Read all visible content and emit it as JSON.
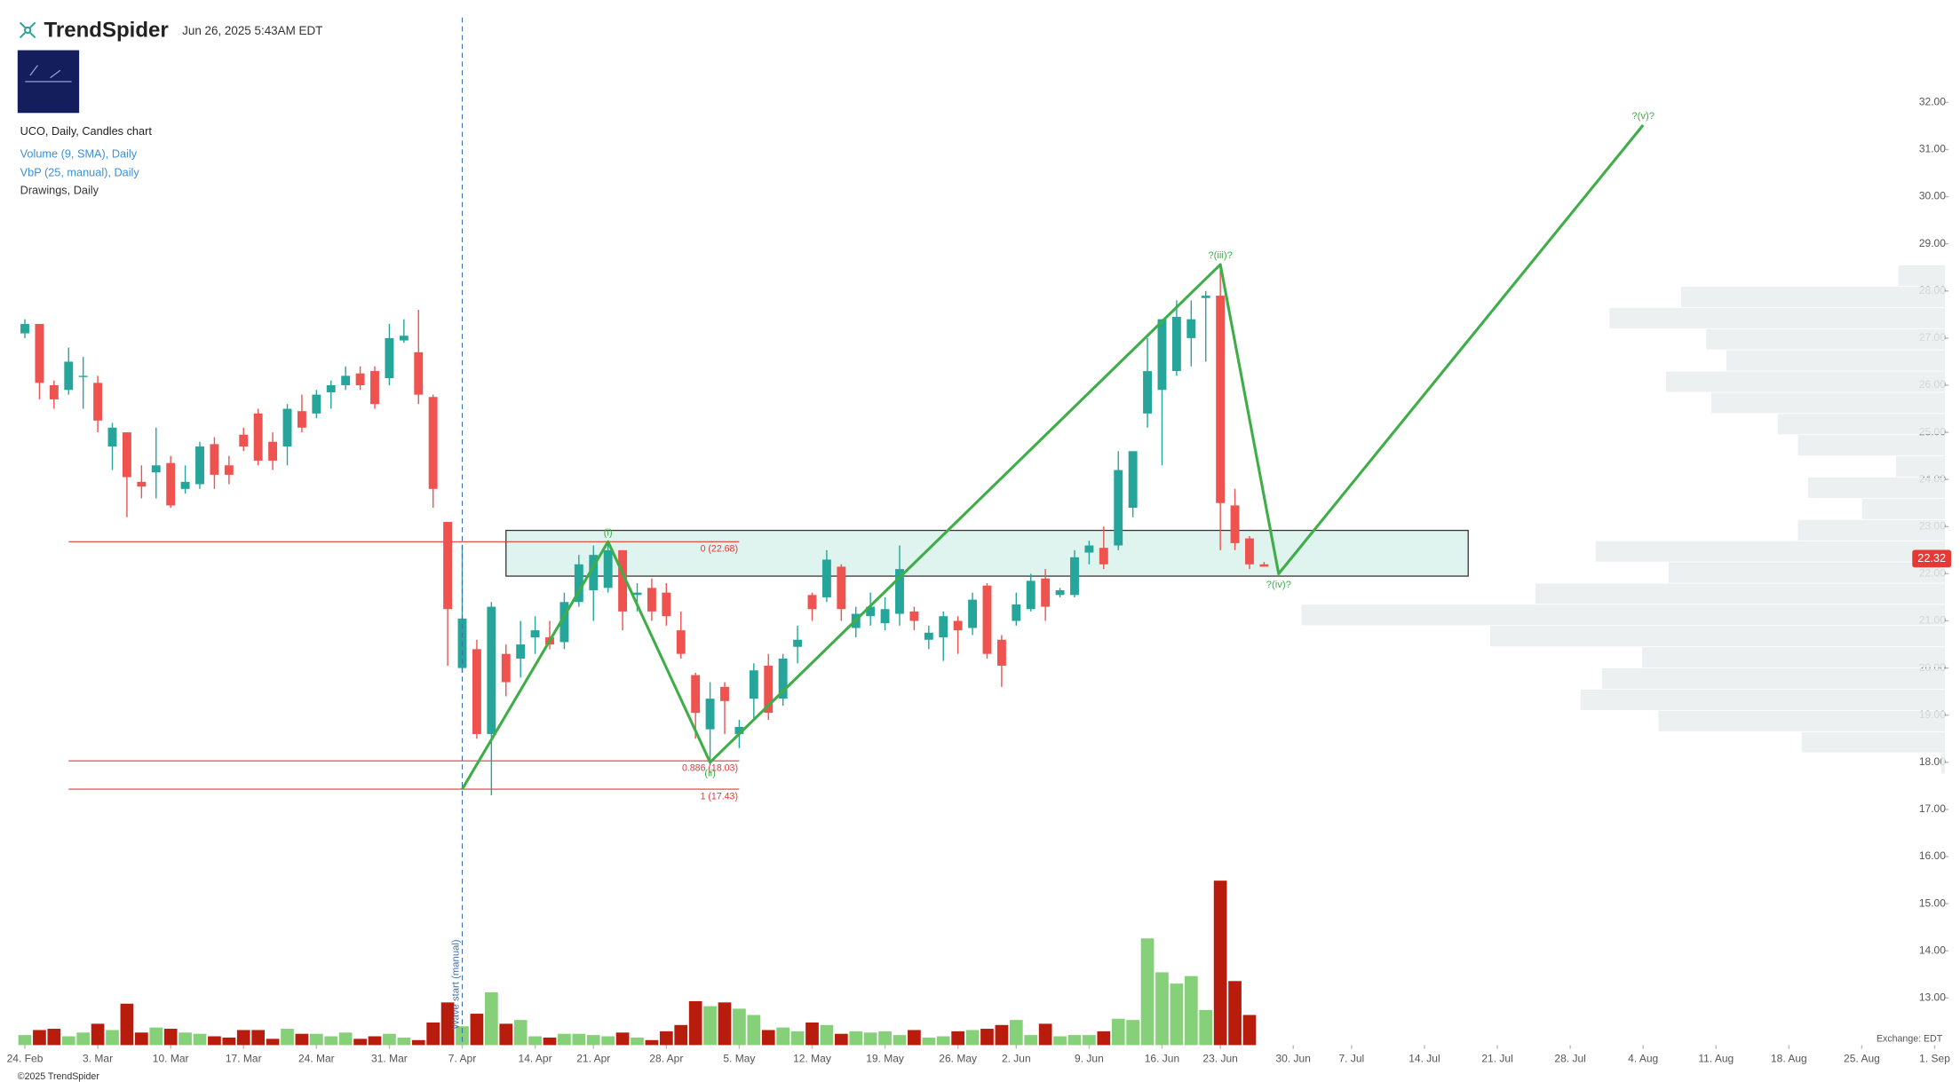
{
  "header": {
    "brand": "TrendSpider",
    "timestamp": "Jun 26, 2025 5:43AM EDT",
    "legend": [
      "UCO, Daily, Candles chart",
      "Volume (9, SMA), Daily",
      "VbP (25, manual), Daily",
      "Drawings, Daily"
    ],
    "copyright": "©2025 TrendSpider",
    "exchange": "Exchange: EDT"
  },
  "chart_data": {
    "type": "candlestick",
    "up_color": "#26a69a",
    "down_color": "#ef5350",
    "volume_up_color": "#86d07a",
    "volume_down_color": "#b71c0c",
    "xlim": [
      -0.5,
      131.7
    ],
    "ylim": [
      12,
      33.8
    ],
    "xticks": [
      {
        "value": 0,
        "label": "24. Feb"
      },
      {
        "value": 5,
        "label": "3. Mar"
      },
      {
        "value": 10,
        "label": "10. Mar"
      },
      {
        "value": 15,
        "label": "17. Mar"
      },
      {
        "value": 20,
        "label": "24. Mar"
      },
      {
        "value": 25,
        "label": "31. Mar"
      },
      {
        "value": 30,
        "label": "7. Apr"
      },
      {
        "value": 35,
        "label": "14. Apr"
      },
      {
        "value": 39,
        "label": "21. Apr"
      },
      {
        "value": 44,
        "label": "28. Apr"
      },
      {
        "value": 49,
        "label": "5. May"
      },
      {
        "value": 54,
        "label": "12. May"
      },
      {
        "value": 59,
        "label": "19. May"
      },
      {
        "value": 64,
        "label": "26. May"
      },
      {
        "value": 68,
        "label": "2. Jun"
      },
      {
        "value": 73,
        "label": "9. Jun"
      },
      {
        "value": 78,
        "label": "16. Jun"
      },
      {
        "value": 82,
        "label": "23. Jun"
      },
      {
        "value": 87,
        "label": "30. Jun"
      },
      {
        "value": 91,
        "label": "7. Jul"
      },
      {
        "value": 96,
        "label": "14. Jul"
      },
      {
        "value": 101,
        "label": "21. Jul"
      },
      {
        "value": 106,
        "label": "28. Jul"
      },
      {
        "value": 111,
        "label": "4. Aug"
      },
      {
        "value": 116,
        "label": "11. Aug"
      },
      {
        "value": 121,
        "label": "18. Aug"
      },
      {
        "value": 126,
        "label": "25. Aug"
      },
      {
        "value": 131,
        "label": "1. Sep"
      }
    ],
    "yticks": [
      {
        "value": 13,
        "label": "13.00"
      },
      {
        "value": 14,
        "label": "14.00"
      },
      {
        "value": 15,
        "label": "15.00"
      },
      {
        "value": 16,
        "label": "16.00"
      },
      {
        "value": 17,
        "label": "17.00"
      },
      {
        "value": 18,
        "label": "18.00"
      },
      {
        "value": 19,
        "label": "19.00"
      },
      {
        "value": 20,
        "label": "20.00"
      },
      {
        "value": 21,
        "label": "21.00"
      },
      {
        "value": 22,
        "label": "22.00"
      },
      {
        "value": 23,
        "label": "23.00"
      },
      {
        "value": 24,
        "label": "24.00"
      },
      {
        "value": 25,
        "label": "25.00"
      },
      {
        "value": 26,
        "label": "26.00"
      },
      {
        "value": 27,
        "label": "27.00"
      },
      {
        "value": 28,
        "label": "28.00"
      },
      {
        "value": 29,
        "label": "29.00"
      },
      {
        "value": 30,
        "label": "30.00"
      },
      {
        "value": 31,
        "label": "31.00"
      },
      {
        "value": 32,
        "label": "32.00"
      }
    ],
    "open": [
      27.1,
      27.3,
      26.0,
      25.9,
      26.2,
      26.05,
      24.7,
      25.0,
      23.95,
      24.15,
      24.35,
      23.8,
      23.9,
      24.75,
      24.3,
      24.95,
      25.4,
      24.8,
      24.7,
      25.45,
      25.4,
      25.85,
      26.0,
      26.25,
      26.3,
      26.15,
      26.95,
      26.7,
      25.75,
      23.1,
      20.0,
      20.4,
      18.6,
      20.3,
      20.2,
      20.65,
      20.65,
      20.55,
      21.4,
      21.65,
      21.7,
      22.5,
      21.55,
      21.7,
      21.6,
      20.8,
      19.85,
      18.7,
      19.6,
      18.6,
      19.35,
      20.05,
      19.35,
      20.45,
      21.55,
      21.5,
      22.15,
      20.85,
      21.1,
      20.95,
      21.15,
      21.2,
      20.6,
      20.65,
      21.0,
      20.85,
      21.75,
      20.6,
      21.0,
      21.25,
      21.9,
      21.55,
      21.55,
      22.45,
      22.55,
      22.6,
      23.4,
      25.4,
      25.9,
      26.3,
      27.0,
      27.85,
      27.9,
      23.45,
      22.75,
      22.2
    ],
    "high": [
      27.4,
      27.3,
      26.1,
      26.8,
      26.6,
      26.2,
      25.2,
      25.0,
      24.3,
      25.1,
      24.5,
      24.3,
      24.8,
      24.9,
      24.5,
      25.1,
      25.5,
      25.0,
      25.6,
      25.8,
      25.9,
      26.1,
      26.4,
      26.4,
      26.4,
      27.3,
      27.4,
      27.6,
      25.8,
      23.1,
      22.6,
      20.6,
      21.4,
      20.5,
      21.0,
      21.1,
      21.0,
      21.6,
      22.4,
      22.6,
      22.7,
      22.5,
      21.8,
      21.9,
      21.8,
      21.2,
      19.9,
      19.7,
      19.7,
      18.9,
      20.1,
      20.3,
      20.3,
      20.9,
      21.6,
      22.5,
      22.2,
      21.3,
      21.6,
      21.5,
      22.6,
      21.3,
      20.9,
      21.2,
      21.1,
      21.6,
      21.8,
      20.7,
      21.6,
      22.0,
      22.1,
      21.7,
      22.5,
      22.7,
      23.0,
      24.6,
      24.6,
      27.0,
      27.4,
      27.8,
      27.8,
      28.0,
      28.55,
      23.8,
      22.8,
      22.25
    ],
    "low": [
      27.0,
      25.7,
      25.5,
      25.8,
      25.5,
      25.0,
      24.2,
      23.2,
      23.6,
      23.6,
      23.4,
      23.7,
      23.8,
      23.8,
      23.9,
      24.6,
      24.3,
      24.2,
      24.3,
      25.0,
      25.3,
      25.5,
      25.9,
      25.9,
      25.5,
      26.0,
      26.9,
      25.6,
      23.4,
      20.05,
      19.9,
      18.5,
      17.3,
      19.4,
      19.8,
      20.3,
      20.4,
      20.4,
      21.3,
      21.0,
      21.6,
      20.8,
      21.2,
      21.0,
      20.9,
      20.2,
      18.5,
      17.95,
      18.6,
      18.3,
      18.9,
      18.9,
      19.2,
      20.1,
      21.0,
      21.4,
      21.0,
      20.65,
      20.9,
      20.8,
      20.9,
      20.8,
      20.4,
      20.15,
      20.3,
      20.7,
      20.2,
      19.6,
      20.9,
      21.2,
      21.0,
      21.5,
      21.5,
      22.2,
      22.1,
      22.5,
      23.2,
      25.1,
      24.3,
      26.2,
      26.4,
      26.5,
      22.5,
      22.5,
      22.1,
      22.15
    ],
    "close": [
      27.3,
      26.05,
      25.7,
      26.5,
      26.2,
      25.25,
      25.1,
      24.05,
      23.85,
      24.3,
      23.45,
      23.95,
      24.7,
      24.1,
      24.1,
      24.7,
      24.4,
      24.4,
      25.5,
      25.1,
      25.8,
      26.0,
      26.2,
      26.0,
      25.6,
      27.0,
      27.05,
      25.8,
      23.8,
      21.25,
      21.05,
      18.6,
      21.3,
      19.7,
      20.5,
      20.8,
      20.5,
      21.4,
      22.2,
      22.4,
      22.5,
      21.2,
      21.6,
      21.2,
      21.1,
      20.3,
      19.05,
      19.35,
      19.3,
      18.75,
      19.95,
      19.05,
      20.2,
      20.6,
      21.25,
      22.3,
      21.25,
      21.15,
      21.3,
      21.25,
      22.1,
      21.0,
      20.75,
      21.1,
      20.8,
      21.45,
      20.3,
      20.05,
      21.35,
      21.85,
      21.3,
      21.65,
      22.35,
      22.6,
      22.2,
      24.2,
      24.6,
      26.3,
      27.4,
      27.45,
      27.4,
      27.9,
      23.5,
      22.65,
      22.2,
      22.15
    ],
    "volume": {
      "vlim": [
        0,
        140
      ],
      "values": [
        8,
        12,
        13,
        7,
        10,
        17,
        12,
        33,
        10,
        14,
        13,
        10,
        9,
        7,
        6,
        12,
        12,
        5,
        13,
        9,
        9,
        7,
        10,
        5,
        7,
        9,
        6,
        4,
        18,
        34,
        15,
        25,
        42,
        17,
        20,
        7,
        6,
        9,
        9,
        8,
        7,
        10,
        6,
        4,
        11,
        16,
        35,
        31,
        34,
        29,
        24,
        12,
        14,
        11,
        18,
        16,
        9,
        11,
        10,
        11,
        8,
        12,
        6,
        7,
        11,
        12,
        13,
        16,
        20,
        8,
        17,
        7,
        8,
        8,
        11,
        21,
        20,
        85,
        58,
        49,
        55,
        28,
        131,
        51,
        24,
        null
      ]
    },
    "vbp": {
      "low": 17.3,
      "high": 28.55,
      "lim": [
        0,
        600
      ],
      "values": [
        0,
        3,
        114,
        228,
        290,
        273,
        241,
        362,
        512,
        326,
        220,
        278,
        117,
        66,
        109,
        39,
        117,
        133,
        186,
        222,
        174,
        190,
        267,
        210,
        37
      ]
    },
    "zone": {
      "x": [
        33,
        99
      ],
      "y": [
        21.95,
        22.92
      ]
    },
    "fib": {
      "x": [
        3,
        49
      ],
      "levels": [
        {
          "value": 22.68,
          "label": "0 (22.68)"
        },
        {
          "value": 18.03,
          "label": "0.886 (18.03)"
        },
        {
          "value": 17.43,
          "label": "1 (17.43)"
        }
      ]
    },
    "wave": {
      "x": [
        30,
        40,
        47,
        82,
        86,
        111
      ],
      "y": [
        17.43,
        22.68,
        18.0,
        28.56,
        22.0,
        31.52
      ],
      "labels": [
        null,
        "(i)",
        "(ii)",
        "?(iii)?",
        "?(iv)?",
        "?(v)?"
      ]
    },
    "wave_start": {
      "x": 30,
      "label": "Wave start (manual)"
    },
    "last_price": {
      "value": 22.32,
      "label": "22.32"
    }
  }
}
